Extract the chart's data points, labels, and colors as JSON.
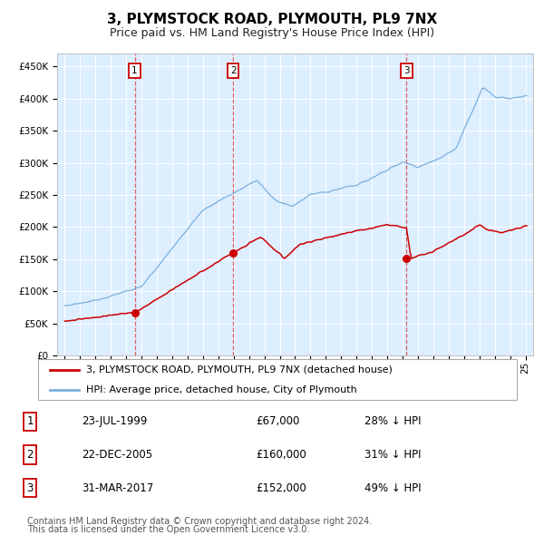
{
  "title": "3, PLYMSTOCK ROAD, PLYMOUTH, PL9 7NX",
  "subtitle": "Price paid vs. HM Land Registry's House Price Index (HPI)",
  "legend_label_red": "3, PLYMSTOCK ROAD, PLYMOUTH, PL9 7NX (detached house)",
  "legend_label_blue": "HPI: Average price, detached house, City of Plymouth",
  "footer1": "Contains HM Land Registry data © Crown copyright and database right 2024.",
  "footer2": "This data is licensed under the Open Government Licence v3.0.",
  "transactions": [
    {
      "num": 1,
      "date": "23-JUL-1999",
      "year": 1999.55,
      "price": 67000,
      "pct": "28%",
      "dir": "↓"
    },
    {
      "num": 2,
      "date": "22-DEC-2005",
      "year": 2005.97,
      "price": 160000,
      "pct": "31%",
      "dir": "↓"
    },
    {
      "num": 3,
      "date": "31-MAR-2017",
      "year": 2017.25,
      "price": 152000,
      "pct": "49%",
      "dir": "↓"
    }
  ],
  "ylim": [
    0,
    470000
  ],
  "yticks": [
    0,
    50000,
    100000,
    150000,
    200000,
    250000,
    300000,
    350000,
    400000,
    450000
  ],
  "xlim_start": 1994.5,
  "xlim_end": 2025.5,
  "background_color": "#ddeeff",
  "grid_color": "#ffffff",
  "red_line_color": "#cc0000",
  "blue_line_color": "#7aafdd",
  "dashed_line_color": "#dd4444",
  "marker_color": "#cc0000",
  "box_edge_color": "#cc0000",
  "title_fontsize": 11,
  "subtitle_fontsize": 9,
  "tick_fontsize": 7.5,
  "legend_fontsize": 8,
  "table_fontsize": 8.5,
  "footer_fontsize": 7
}
